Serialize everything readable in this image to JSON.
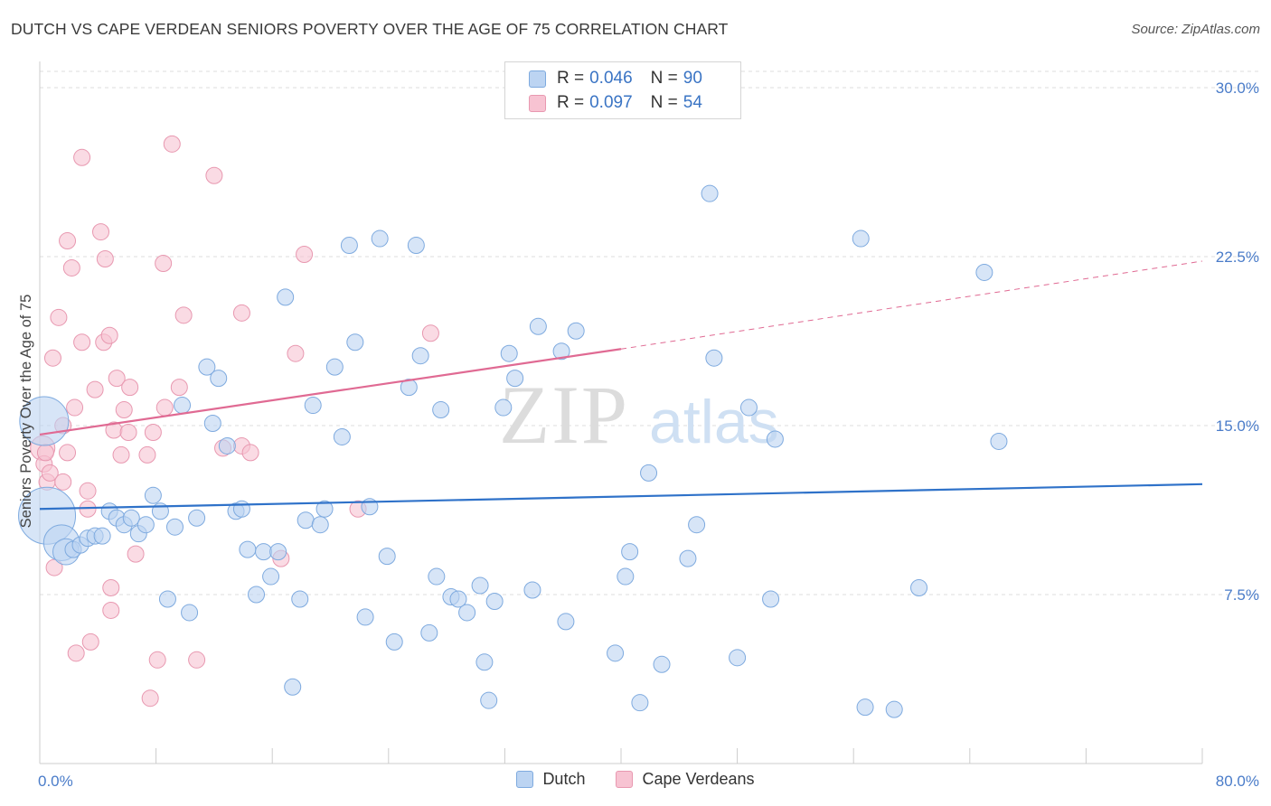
{
  "title": "DUTCH VS CAPE VERDEAN SENIORS POVERTY OVER THE AGE OF 75 CORRELATION CHART",
  "source": "Source: ZipAtlas.com",
  "watermark": {
    "zip": "ZIP",
    "atlas": "atlas"
  },
  "colors": {
    "dutch_fill": "#bcd4f2",
    "dutch_stroke": "#7eaadf",
    "dutch_line": "#2f72c9",
    "cape_fill": "#f7c3d2",
    "cape_stroke": "#e898b0",
    "cape_line": "#e06a93",
    "grid": "#dddddd",
    "axis_label": "#4a7cc9"
  },
  "legend": {
    "rows": [
      {
        "r_label": "R = ",
        "r_value": "0.046",
        "n_label": "N = ",
        "n_value": "90"
      },
      {
        "r_label": "R = ",
        "r_value": "0.097",
        "n_label": "N = ",
        "n_value": "54"
      }
    ]
  },
  "bottom_legend": [
    "Dutch",
    "Cape Verdeans"
  ],
  "chart_data": {
    "type": "scatter",
    "title": "DUTCH VS CAPE VERDEAN SENIORS POVERTY OVER THE AGE OF 75 CORRELATION CHART",
    "xlabel": "",
    "ylabel": "Seniors Poverty Over the Age of 75",
    "xlim": [
      0,
      80
    ],
    "ylim": [
      0,
      30
    ],
    "x_tick_labels": [
      "0.0%",
      "80.0%"
    ],
    "y_ticks": [
      7.5,
      15.0,
      22.5,
      30.0
    ],
    "y_tick_labels": [
      "7.5%",
      "15.0%",
      "22.5%",
      "30.0%"
    ],
    "grid": "horizontal dashed",
    "series": [
      {
        "name": "Dutch",
        "r": 0.046,
        "n": 90,
        "trend": {
          "x": [
            0,
            80
          ],
          "y": [
            11.3,
            12.4
          ]
        },
        "points": [
          [
            0.3,
            15.2,
            3
          ],
          [
            0.5,
            11.0,
            3.5
          ],
          [
            1.5,
            9.8,
            2.2
          ],
          [
            1.8,
            9.4,
            1.6
          ],
          [
            2.3,
            9.5,
            1
          ],
          [
            2.8,
            9.7,
            1
          ],
          [
            3.3,
            10.0,
            1
          ],
          [
            3.8,
            10.1,
            1
          ],
          [
            4.3,
            10.1,
            1
          ],
          [
            4.8,
            11.2,
            1
          ],
          [
            5.3,
            10.9,
            1
          ],
          [
            5.8,
            10.6,
            1
          ],
          [
            6.3,
            10.9,
            1
          ],
          [
            6.8,
            10.2,
            1
          ],
          [
            7.3,
            10.6,
            1
          ],
          [
            7.8,
            11.9,
            1
          ],
          [
            8.3,
            11.2,
            1
          ],
          [
            8.8,
            7.3,
            1
          ],
          [
            9.3,
            10.5,
            1
          ],
          [
            9.8,
            15.9,
            1
          ],
          [
            10.3,
            6.7,
            1
          ],
          [
            10.8,
            10.9,
            1
          ],
          [
            11.5,
            17.6,
            1
          ],
          [
            11.9,
            15.1,
            1
          ],
          [
            12.3,
            17.1,
            1
          ],
          [
            12.9,
            14.1,
            1
          ],
          [
            13.5,
            11.2,
            1
          ],
          [
            13.9,
            11.3,
            1
          ],
          [
            14.3,
            9.5,
            1
          ],
          [
            14.9,
            7.5,
            1
          ],
          [
            15.4,
            9.4,
            1
          ],
          [
            15.9,
            8.3,
            1
          ],
          [
            16.4,
            9.4,
            1
          ],
          [
            16.9,
            20.7,
            1
          ],
          [
            17.4,
            3.4,
            1
          ],
          [
            17.9,
            7.3,
            1
          ],
          [
            18.3,
            10.8,
            1
          ],
          [
            18.8,
            15.9,
            1
          ],
          [
            19.3,
            10.6,
            1
          ],
          [
            19.6,
            11.3,
            1
          ],
          [
            20.3,
            17.6,
            1
          ],
          [
            20.8,
            14.5,
            1
          ],
          [
            21.3,
            23.0,
            1
          ],
          [
            21.7,
            18.7,
            1
          ],
          [
            22.4,
            6.5,
            1
          ],
          [
            22.7,
            11.4,
            1
          ],
          [
            23.4,
            23.3,
            1
          ],
          [
            23.9,
            9.2,
            1
          ],
          [
            24.4,
            5.4,
            1
          ],
          [
            25.4,
            16.7,
            1
          ],
          [
            25.9,
            23.0,
            1
          ],
          [
            26.2,
            18.1,
            1
          ],
          [
            26.8,
            5.8,
            1
          ],
          [
            27.3,
            8.3,
            1
          ],
          [
            27.6,
            15.7,
            1
          ],
          [
            28.3,
            7.4,
            1
          ],
          [
            28.8,
            7.3,
            1
          ],
          [
            29.4,
            6.7,
            1
          ],
          [
            30.3,
            7.9,
            1
          ],
          [
            30.6,
            4.5,
            1
          ],
          [
            30.9,
            2.8,
            1
          ],
          [
            31.3,
            7.2,
            1
          ],
          [
            31.9,
            15.8,
            1
          ],
          [
            32.3,
            18.2,
            1
          ],
          [
            32.7,
            17.1,
            1
          ],
          [
            33.9,
            7.7,
            1
          ],
          [
            34.3,
            19.4,
            1
          ],
          [
            35.9,
            18.3,
            1
          ],
          [
            36.2,
            6.3,
            1
          ],
          [
            36.9,
            19.2,
            1
          ],
          [
            39.6,
            4.9,
            1
          ],
          [
            40.3,
            8.3,
            1
          ],
          [
            40.6,
            9.4,
            1
          ],
          [
            41.3,
            2.7,
            1
          ],
          [
            41.9,
            12.9,
            1
          ],
          [
            42.8,
            4.4,
            1
          ],
          [
            44.6,
            9.1,
            1
          ],
          [
            45.2,
            10.6,
            1
          ],
          [
            46.1,
            25.3,
            1
          ],
          [
            46.4,
            18.0,
            1
          ],
          [
            48.0,
            4.7,
            1
          ],
          [
            48.8,
            15.8,
            1
          ],
          [
            50.3,
            7.3,
            1
          ],
          [
            50.6,
            14.4,
            1
          ],
          [
            56.8,
            2.5,
            1
          ],
          [
            58.8,
            2.4,
            1
          ],
          [
            56.5,
            23.3,
            1
          ],
          [
            60.5,
            7.8,
            1
          ],
          [
            65.0,
            21.8,
            1
          ],
          [
            66.0,
            14.3,
            1
          ]
        ]
      },
      {
        "name": "Cape Verdeans",
        "r": 0.097,
        "n": 54,
        "trend": {
          "x": [
            0,
            40
          ],
          "y": [
            14.6,
            18.4
          ]
        },
        "trend_extension": {
          "x": [
            40,
            80
          ],
          "y": [
            18.4,
            22.3
          ]
        },
        "points": [
          [
            0.2,
            14.0,
            1.5
          ],
          [
            0.3,
            13.3,
            1
          ],
          [
            0.4,
            13.8,
            1
          ],
          [
            0.5,
            12.5,
            1
          ],
          [
            0.7,
            12.9,
            1
          ],
          [
            0.9,
            18.0,
            1
          ],
          [
            1.0,
            8.7,
            1
          ],
          [
            1.3,
            19.8,
            1
          ],
          [
            1.6,
            12.5,
            1
          ],
          [
            1.6,
            15.0,
            1
          ],
          [
            1.9,
            23.2,
            1
          ],
          [
            2.2,
            22.0,
            1
          ],
          [
            2.4,
            15.8,
            1
          ],
          [
            2.5,
            4.9,
            1
          ],
          [
            2.9,
            26.9,
            1
          ],
          [
            2.9,
            18.7,
            1
          ],
          [
            3.3,
            11.3,
            1
          ],
          [
            3.3,
            12.1,
            1
          ],
          [
            3.5,
            5.4,
            1
          ],
          [
            3.8,
            16.6,
            1
          ],
          [
            4.2,
            23.6,
            1
          ],
          [
            4.4,
            18.7,
            1
          ],
          [
            4.5,
            22.4,
            1
          ],
          [
            4.8,
            19.0,
            1
          ],
          [
            4.9,
            7.8,
            1
          ],
          [
            4.9,
            6.8,
            1
          ],
          [
            5.1,
            14.8,
            1
          ],
          [
            5.3,
            17.1,
            1
          ],
          [
            5.6,
            13.7,
            1
          ],
          [
            5.8,
            15.7,
            1
          ],
          [
            6.1,
            14.7,
            1
          ],
          [
            6.2,
            16.7,
            1
          ],
          [
            6.6,
            9.3,
            1
          ],
          [
            7.4,
            13.7,
            1
          ],
          [
            7.6,
            2.9,
            1
          ],
          [
            7.8,
            14.7,
            1
          ],
          [
            8.1,
            4.6,
            1
          ],
          [
            8.5,
            22.2,
            1
          ],
          [
            8.6,
            15.8,
            1
          ],
          [
            9.1,
            27.5,
            1
          ],
          [
            9.6,
            16.7,
            1
          ],
          [
            9.9,
            19.9,
            1
          ],
          [
            10.8,
            4.6,
            1
          ],
          [
            12.0,
            26.1,
            1
          ],
          [
            12.6,
            14.0,
            1
          ],
          [
            13.9,
            14.1,
            1
          ],
          [
            13.9,
            20.0,
            1
          ],
          [
            14.5,
            13.8,
            1
          ],
          [
            16.6,
            9.1,
            1
          ],
          [
            17.6,
            18.2,
            1
          ],
          [
            18.2,
            22.6,
            1
          ],
          [
            21.9,
            11.3,
            1
          ],
          [
            26.9,
            19.1,
            1
          ],
          [
            1.9,
            13.8,
            1
          ]
        ]
      }
    ]
  }
}
